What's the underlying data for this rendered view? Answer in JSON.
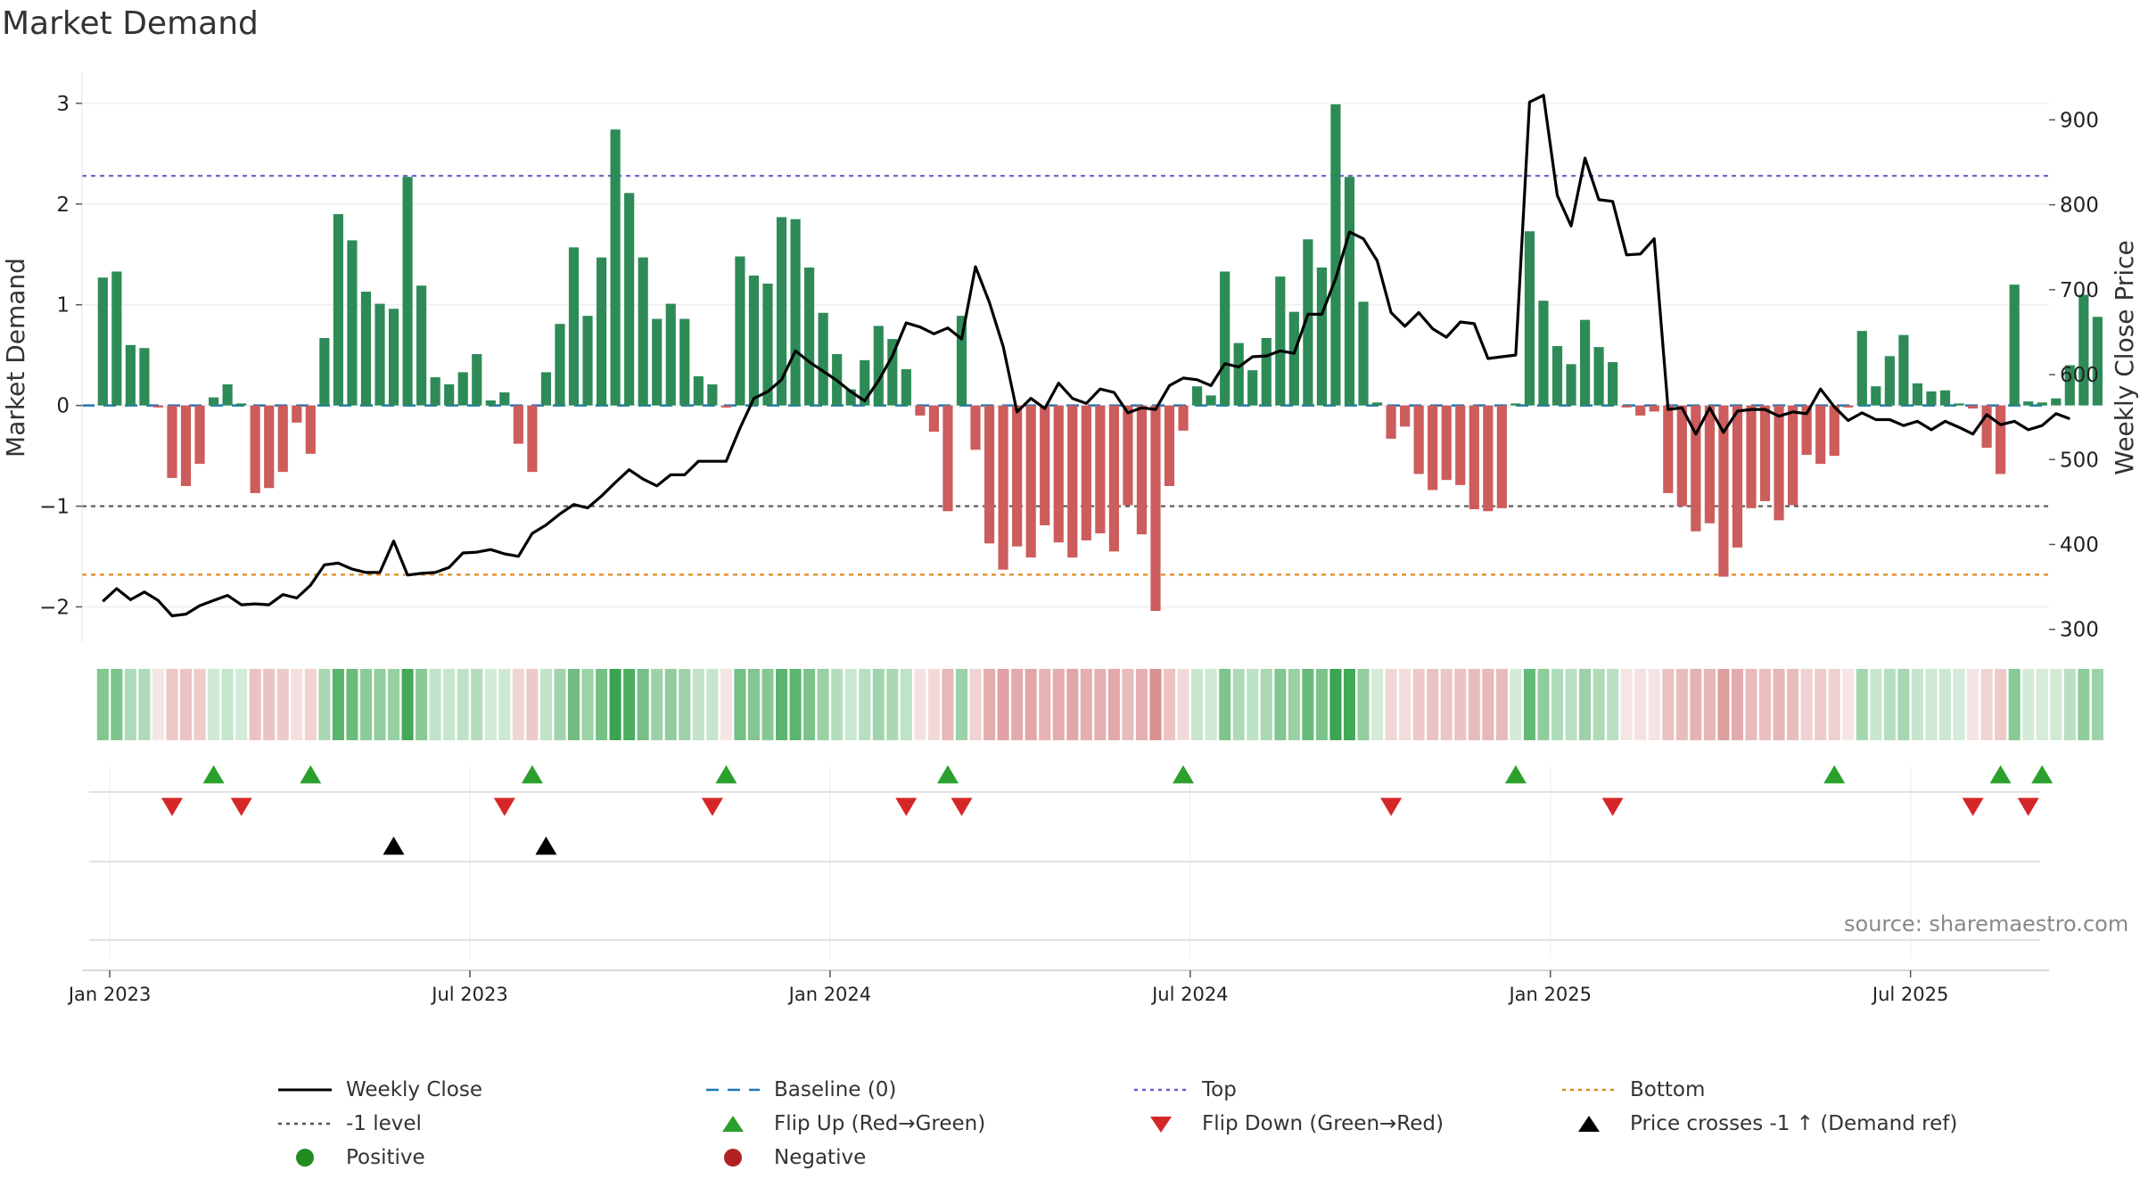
{
  "title": "Market Demand",
  "source": "source: sharemaestro.com",
  "colors": {
    "positive": "#2e8b57",
    "negative": "#cd5c5c",
    "close": "#000000",
    "top": "#6a5acd",
    "bottom": "#e08a1e",
    "minus1": "#555555",
    "baseline": "#1f77b4",
    "flip_up": "#2ca02c",
    "flip_down": "#d62728"
  },
  "chart_data": {
    "type": "bar",
    "title": "Market Demand",
    "ylabel": "Market Demand",
    "y2label": "Weekly Close Price",
    "ylim": [
      -2.35,
      3.3
    ],
    "y2lim": [
      285,
      955
    ],
    "yticks": [
      -2,
      -1,
      0,
      1,
      2,
      3
    ],
    "y2ticks": [
      300,
      400,
      500,
      600,
      700,
      800,
      900
    ],
    "ytick_labels": [
      "−2",
      "−1",
      "0",
      "1",
      "2",
      "3"
    ],
    "y2tick_labels": [
      "300",
      "400",
      "500",
      "600",
      "700",
      "800",
      "900"
    ],
    "xlim": [
      -1.5,
      140.5
    ],
    "xticks": [
      {
        "label": "Jan 2023",
        "x": 0.5
      },
      {
        "label": "Jul 2023",
        "x": 26.5
      },
      {
        "label": "Jan 2024",
        "x": 52.5
      },
      {
        "label": "Jul 2024",
        "x": 78.5
      },
      {
        "label": "Jan 2025",
        "x": 104.5
      },
      {
        "label": "Jul 2025",
        "x": 130.5
      }
    ],
    "levels": {
      "top": 2.28,
      "minus1": -1.0,
      "bottom": -1.68,
      "baseline": 0
    },
    "demand": [
      1.27,
      1.33,
      0.6,
      0.57,
      -0.02,
      -0.72,
      -0.8,
      -0.58,
      0.08,
      0.21,
      0.02,
      -0.87,
      -0.82,
      -0.66,
      -0.17,
      -0.48,
      0.67,
      1.9,
      1.64,
      1.13,
      1.01,
      0.96,
      2.27,
      1.19,
      0.28,
      0.21,
      0.33,
      0.51,
      0.05,
      0.13,
      -0.38,
      -0.66,
      0.33,
      0.81,
      1.57,
      0.89,
      1.47,
      2.74,
      2.11,
      1.47,
      0.86,
      1.01,
      0.86,
      0.29,
      0.21,
      -0.02,
      1.48,
      1.29,
      1.21,
      1.87,
      1.85,
      1.37,
      0.92,
      0.51,
      0.16,
      0.45,
      0.79,
      0.66,
      0.36,
      -0.1,
      -0.26,
      -1.05,
      0.89,
      -0.44,
      -1.37,
      -1.63,
      -1.4,
      -1.51,
      -1.19,
      -1.36,
      -1.51,
      -1.34,
      -1.27,
      -1.45,
      -0.99,
      -1.28,
      -2.04,
      -0.8,
      -0.25,
      0.19,
      0.1,
      1.33,
      0.62,
      0.35,
      0.67,
      1.28,
      0.93,
      1.65,
      1.37,
      2.99,
      2.27,
      1.03,
      0.03,
      -0.33,
      -0.21,
      -0.68,
      -0.84,
      -0.74,
      -0.79,
      -1.03,
      -1.05,
      -1.02,
      0.02,
      1.73,
      1.04,
      0.59,
      0.41,
      0.85,
      0.58,
      0.43,
      -0.02,
      -0.1,
      -0.06,
      -0.87,
      -1.0,
      -1.25,
      -1.17,
      -1.7,
      -1.41,
      -1.02,
      -0.95,
      -1.14,
      -0.99,
      -0.49,
      -0.58,
      -0.5,
      -0.02,
      0.74,
      0.19,
      0.49,
      0.7,
      0.22,
      0.14,
      0.15,
      0.02,
      -0.03,
      -0.42,
      -0.68,
      1.2,
      0.04,
      0.03,
      0.07,
      0.4,
      1.1,
      0.88
    ],
    "close": [
      333,
      348,
      335,
      344,
      334,
      316,
      318,
      328,
      334,
      340,
      329,
      330,
      329,
      341,
      337,
      352,
      376,
      378,
      371,
      367,
      367,
      404,
      364,
      366,
      367,
      373,
      390,
      391,
      394,
      389,
      386,
      413,
      423,
      436,
      447,
      443,
      457,
      473,
      488,
      477,
      469,
      482,
      482,
      498,
      498,
      498,
      537,
      572,
      580,
      594,
      628,
      615,
      604,
      593,
      580,
      569,
      593,
      622,
      661,
      656,
      648,
      655,
      642,
      727,
      685,
      633,
      556,
      572,
      560,
      590,
      572,
      566,
      583,
      579,
      555,
      561,
      559,
      587,
      596,
      594,
      587,
      613,
      609,
      621,
      622,
      628,
      625,
      671,
      671,
      713,
      768,
      760,
      734,
      673,
      657,
      673,
      654,
      644,
      662,
      660,
      619,
      621,
      623,
      921,
      929,
      811,
      775,
      855,
      806,
      804,
      741,
      742,
      760,
      559,
      561,
      530,
      561,
      532,
      557,
      559,
      559,
      551,
      556,
      554,
      583,
      562,
      546,
      555,
      547,
      547,
      540,
      545,
      535,
      545,
      538,
      530,
      553,
      541,
      545,
      535,
      540,
      554,
      548
    ],
    "flip_up": [
      8,
      15,
      31,
      45,
      61,
      78,
      102,
      125,
      137,
      140
    ],
    "flip_down": [
      5,
      10,
      29,
      44,
      58,
      62,
      93,
      109,
      135,
      139
    ],
    "price_cross_up": [
      21,
      32
    ]
  },
  "legend": [
    {
      "label": "Weekly Close",
      "symbol": "line-solid-black"
    },
    {
      "label": "Baseline (0)",
      "symbol": "line-dashed-blue"
    },
    {
      "label": "Top",
      "symbol": "line-dotted-purple"
    },
    {
      "label": "Bottom",
      "symbol": "line-dotted-orange"
    },
    {
      "label": "-1 level",
      "symbol": "line-dotted-gray"
    },
    {
      "label": "Flip Up (Red→Green)",
      "symbol": "triangle-up-green"
    },
    {
      "label": "Flip Down (Green→Red)",
      "symbol": "triangle-down-red"
    },
    {
      "label": "Price crosses -1 ↑ (Demand ref)",
      "symbol": "triangle-up-black"
    },
    {
      "label": "Positive",
      "symbol": "circle-green"
    },
    {
      "label": "Negative",
      "symbol": "circle-red"
    }
  ]
}
